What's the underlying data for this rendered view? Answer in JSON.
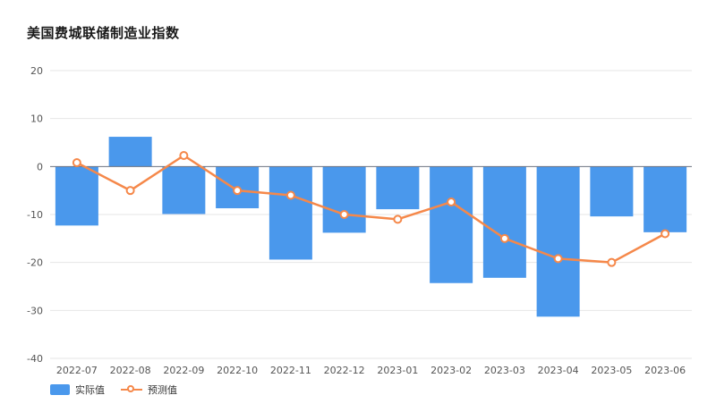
{
  "title": "美国费城联储制造业指数",
  "colors": {
    "bar": "#4a98ec",
    "line": "#f5884a",
    "grid": "#e6e6e6",
    "zero_line": "#6b7280"
  },
  "chart_data": {
    "type": "bar",
    "categories": [
      "2022-07",
      "2022-08",
      "2022-09",
      "2022-10",
      "2022-11",
      "2022-12",
      "2023-01",
      "2023-02",
      "2023-03",
      "2023-04",
      "2023-05",
      "2023-06"
    ],
    "series": [
      {
        "name": "实际值",
        "type": "bar",
        "values": [
          -12.3,
          6.2,
          -9.9,
          -8.7,
          -19.4,
          -13.8,
          -8.9,
          -24.3,
          -23.2,
          -31.3,
          -10.4,
          -13.7
        ]
      },
      {
        "name": "预测值",
        "type": "line",
        "values": [
          0.8,
          -5.0,
          2.3,
          -5.0,
          -6.0,
          -10.0,
          -11.0,
          -7.4,
          -15.0,
          -19.2,
          -20.0,
          -14.0
        ]
      }
    ],
    "ylim": [
      -40,
      20
    ],
    "yticks": [
      20,
      10,
      0,
      -10,
      -20,
      -30,
      -40
    ],
    "grid": true,
    "legend": "bottom-left"
  },
  "legend": {
    "bar_label": "实际值",
    "line_label": "预测值"
  }
}
